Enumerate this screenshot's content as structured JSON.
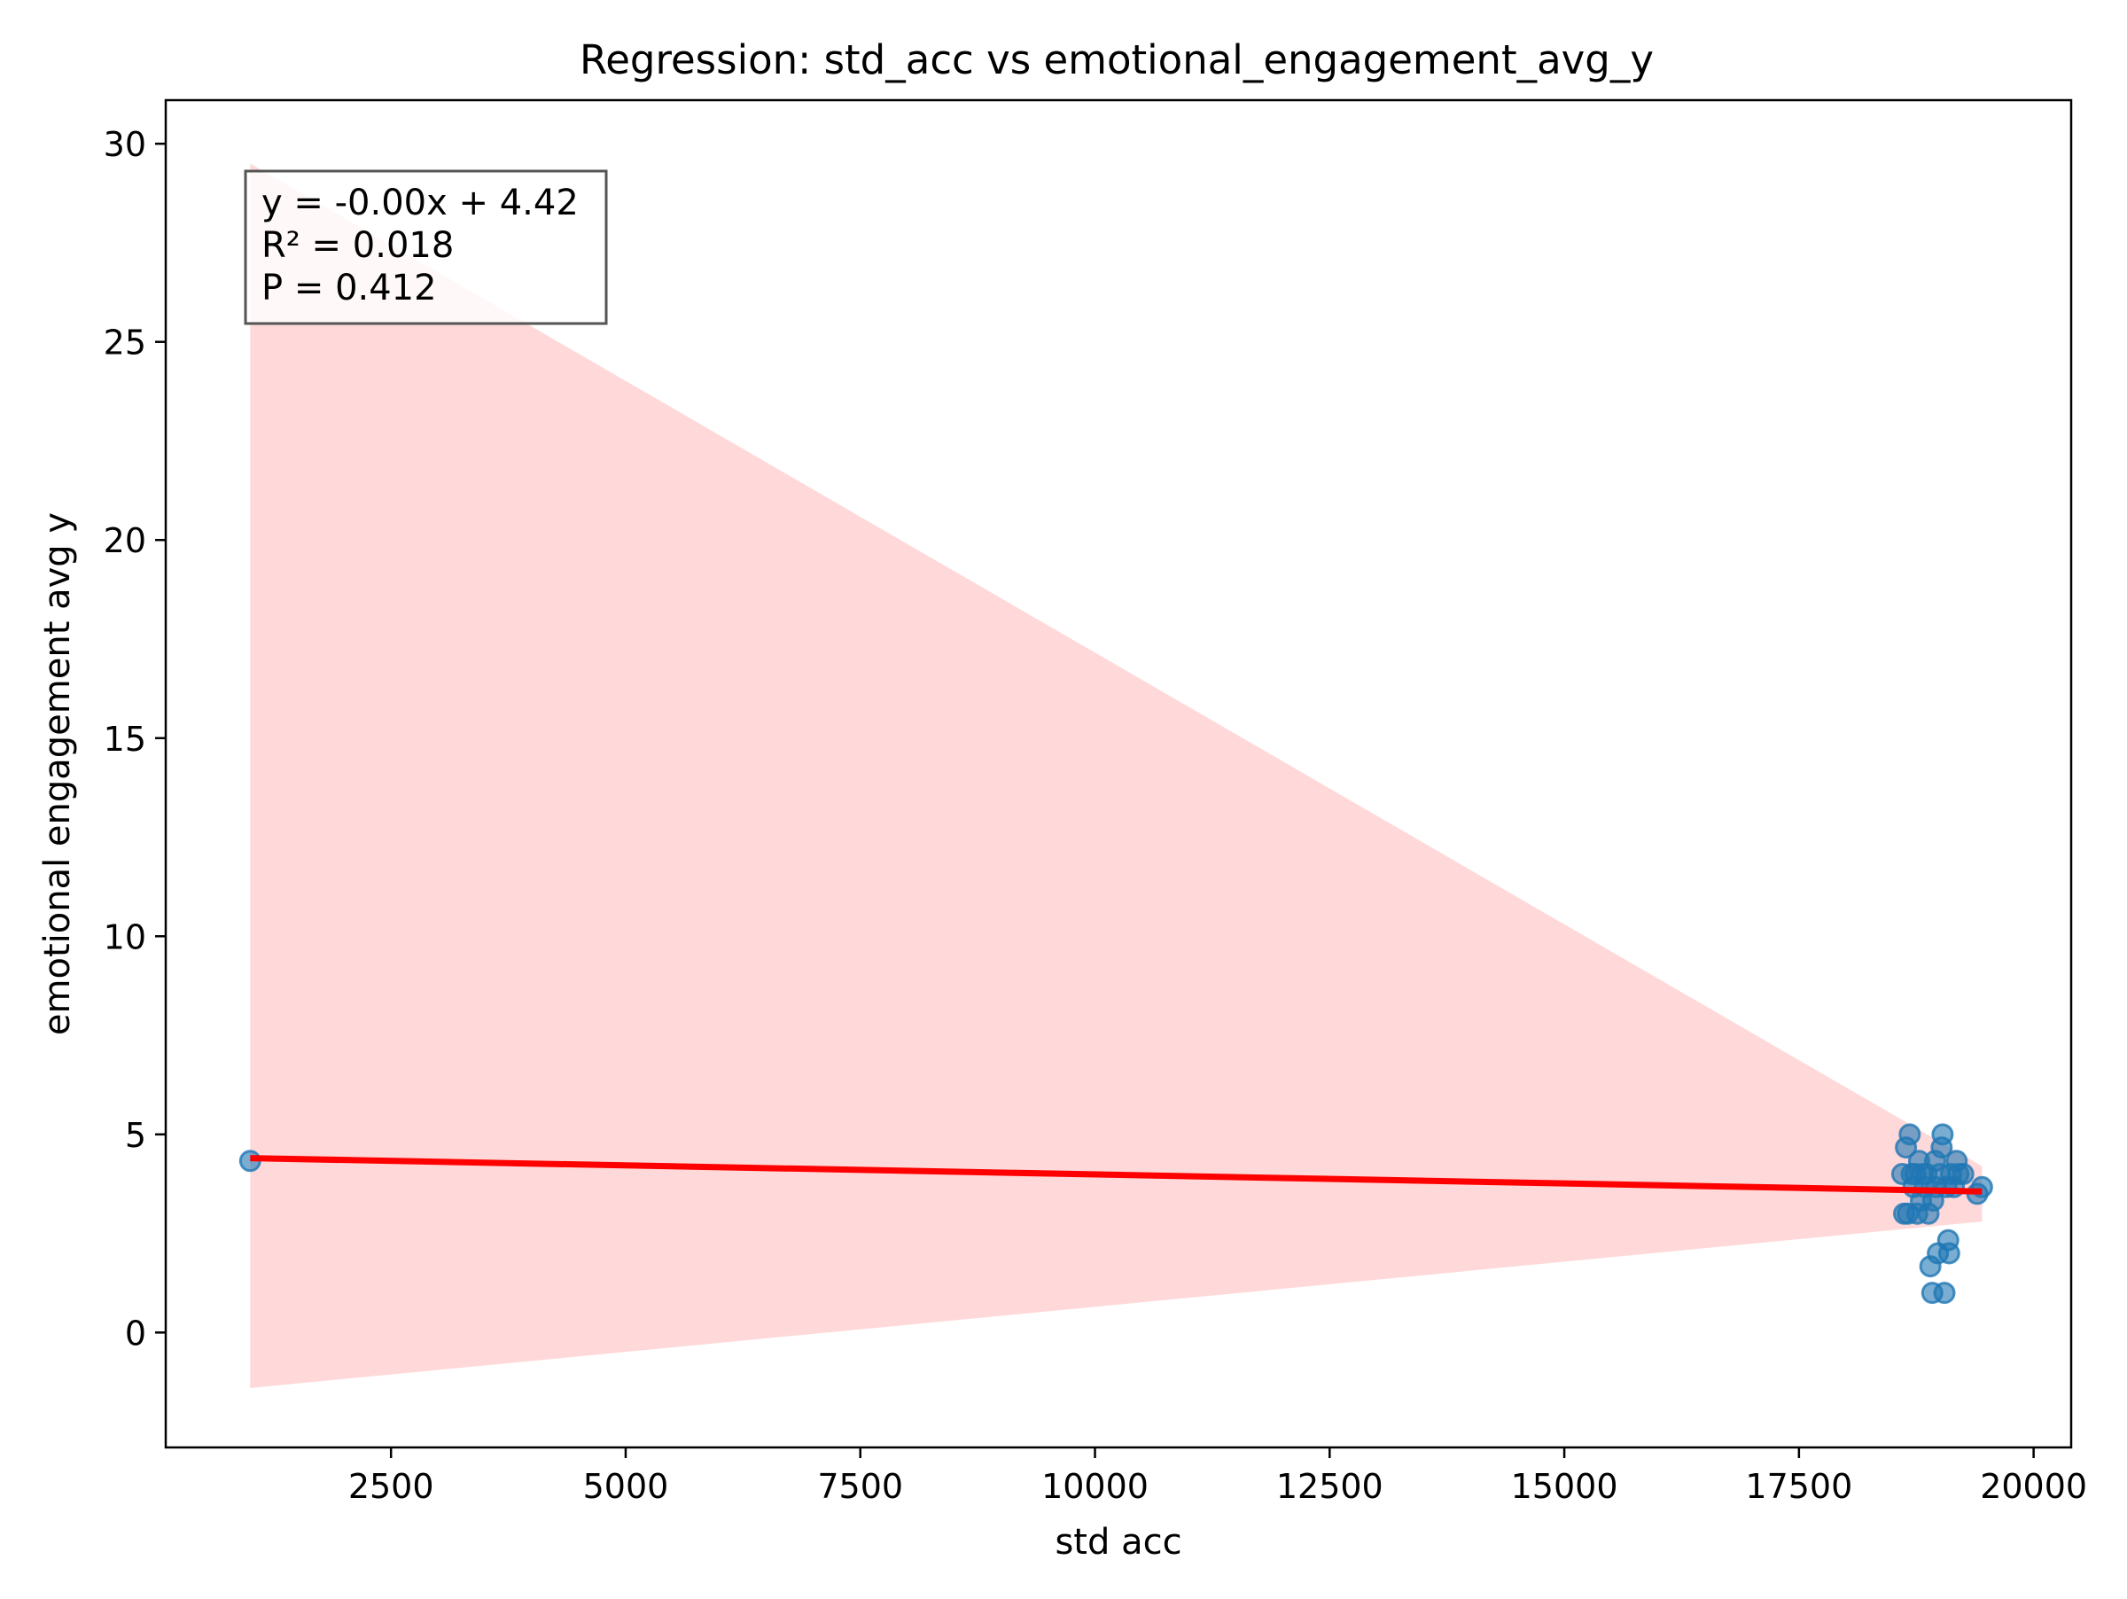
{
  "chart_data": {
    "type": "scatter",
    "title": "Regression: std_acc vs emotional_engagement_avg_y",
    "xlabel": "std acc",
    "ylabel": "emotional engagement avg y",
    "xlim": [
      100,
      20400
    ],
    "ylim": [
      -2.9,
      31.1
    ],
    "x_ticks": [
      2500,
      5000,
      7500,
      10000,
      12500,
      15000,
      17500,
      20000
    ],
    "y_ticks": [
      0,
      5,
      10,
      15,
      20,
      25,
      30
    ],
    "x_tick_labels": [
      "2500",
      "5000",
      "7500",
      "10000",
      "12500",
      "15000",
      "17500",
      "20000"
    ],
    "y_tick_labels": [
      "0",
      "5",
      "10",
      "15",
      "20",
      "25",
      "30"
    ],
    "grid": false,
    "annotation": {
      "position": "top-left",
      "lines": [
        "y = -0.00x + 4.42",
        "R² = 0.018",
        "P = 0.412"
      ]
    },
    "series": [
      {
        "kind": "scatter",
        "color": "#1f77b4",
        "opacity": 0.6,
        "points": [
          {
            "x": 1000,
            "y": 4.33
          },
          {
            "x": 18600,
            "y": 4.0
          },
          {
            "x": 18620,
            "y": 3.0
          },
          {
            "x": 18640,
            "y": 4.67
          },
          {
            "x": 18660,
            "y": 3.0
          },
          {
            "x": 18680,
            "y": 5.0
          },
          {
            "x": 18700,
            "y": 4.0
          },
          {
            "x": 18720,
            "y": 3.67
          },
          {
            "x": 18740,
            "y": 4.0
          },
          {
            "x": 18760,
            "y": 3.0
          },
          {
            "x": 18780,
            "y": 4.33
          },
          {
            "x": 18800,
            "y": 3.33
          },
          {
            "x": 18820,
            "y": 4.0
          },
          {
            "x": 18840,
            "y": 3.67
          },
          {
            "x": 18860,
            "y": 4.0
          },
          {
            "x": 18880,
            "y": 3.0
          },
          {
            "x": 18900,
            "y": 1.67
          },
          {
            "x": 18920,
            "y": 1.0
          },
          {
            "x": 18930,
            "y": 3.33
          },
          {
            "x": 18950,
            "y": 4.33
          },
          {
            "x": 18960,
            "y": 3.67
          },
          {
            "x": 18980,
            "y": 2.0
          },
          {
            "x": 19000,
            "y": 4.0
          },
          {
            "x": 19020,
            "y": 4.67
          },
          {
            "x": 19030,
            "y": 5.0
          },
          {
            "x": 19050,
            "y": 1.0
          },
          {
            "x": 19070,
            "y": 3.67
          },
          {
            "x": 19090,
            "y": 2.33
          },
          {
            "x": 19100,
            "y": 2.0
          },
          {
            "x": 19120,
            "y": 4.0
          },
          {
            "x": 19150,
            "y": 3.67
          },
          {
            "x": 19180,
            "y": 4.33
          },
          {
            "x": 19200,
            "y": 4.0
          },
          {
            "x": 19250,
            "y": 4.0
          },
          {
            "x": 19400,
            "y": 3.5
          },
          {
            "x": 19450,
            "y": 3.67
          }
        ]
      },
      {
        "kind": "regression_line",
        "color": "#ff0000",
        "x": [
          1000,
          19450
        ],
        "y": [
          4.4,
          3.56
        ]
      },
      {
        "kind": "confidence_band",
        "color": "#ff0000",
        "opacity": 0.15,
        "x": [
          1000,
          19450
        ],
        "upper": [
          29.5,
          4.2
        ],
        "lower": [
          -1.4,
          2.8
        ]
      }
    ]
  }
}
